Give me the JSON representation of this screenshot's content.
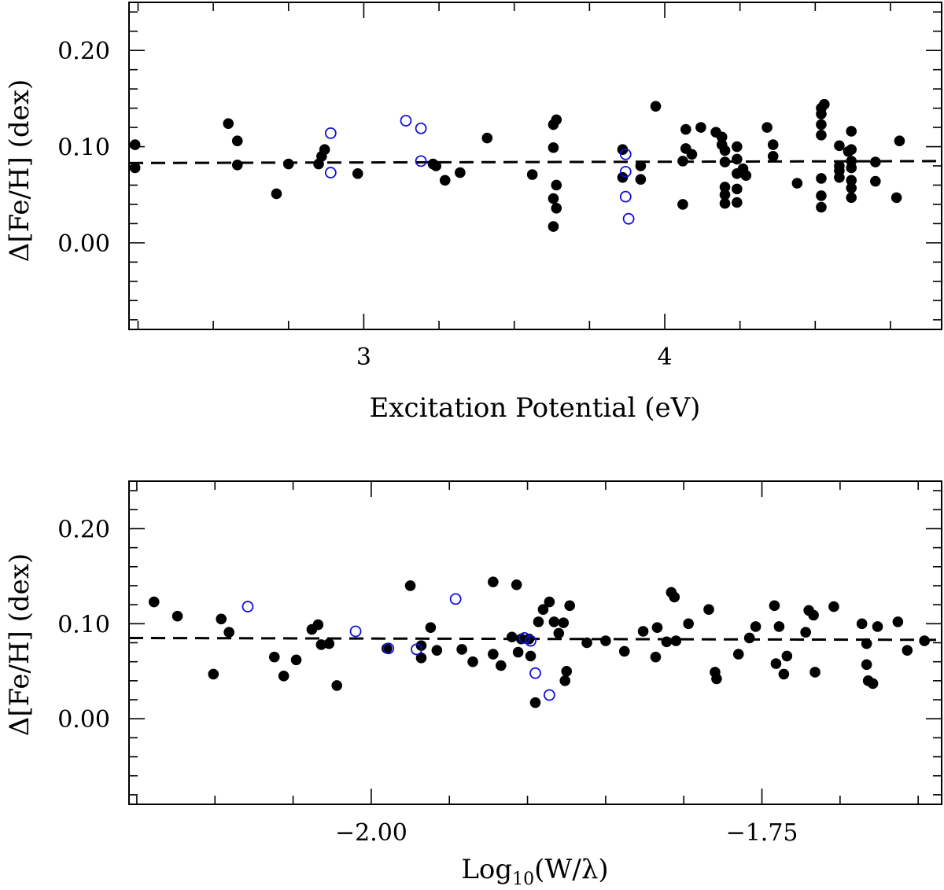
{
  "chart_data": [
    {
      "type": "scatter",
      "xlabel": "Excitation Potential (eV)",
      "ylabel": "Δ[Fe/H] (dex)",
      "xlim": [
        2.22,
        4.92
      ],
      "ylim": [
        -0.09,
        0.25
      ],
      "x_major_ticks": [
        3,
        4
      ],
      "x_tick_labels": [
        "3",
        "4"
      ],
      "x_minor_step": 0.25,
      "y_major_ticks": [
        0.0,
        0.1,
        0.2
      ],
      "y_tick_labels": [
        "0.00",
        "0.10",
        "0.20"
      ],
      "y_minor_step": 0.02,
      "grid": false,
      "reference_line": {
        "style": "dashed",
        "y_start": 0.083,
        "y_end": 0.085
      },
      "series": [
        {
          "marker": "filled-circle",
          "color": "#000000",
          "points": [
            [
              2.24,
              0.102
            ],
            [
              2.24,
              0.078
            ],
            [
              2.55,
              0.124
            ],
            [
              2.58,
              0.106
            ],
            [
              2.58,
              0.081
            ],
            [
              2.71,
              0.051
            ],
            [
              2.75,
              0.082
            ],
            [
              2.85,
              0.082
            ],
            [
              2.86,
              0.09
            ],
            [
              2.87,
              0.097
            ],
            [
              2.98,
              0.072
            ],
            [
              3.23,
              0.082
            ],
            [
              3.24,
              0.08
            ],
            [
              3.27,
              0.065
            ],
            [
              3.32,
              0.073
            ],
            [
              3.41,
              0.109
            ],
            [
              3.56,
              0.071
            ],
            [
              3.63,
              0.123
            ],
            [
              3.64,
              0.128
            ],
            [
              3.63,
              0.099
            ],
            [
              3.64,
              0.06
            ],
            [
              3.63,
              0.046
            ],
            [
              3.64,
              0.036
            ],
            [
              3.63,
              0.017
            ],
            [
              3.86,
              0.097
            ],
            [
              3.86,
              0.068
            ],
            [
              3.92,
              0.08
            ],
            [
              3.92,
              0.066
            ],
            [
              3.97,
              0.142
            ],
            [
              4.06,
              0.085
            ],
            [
              4.07,
              0.118
            ],
            [
              4.07,
              0.098
            ],
            [
              4.06,
              0.04
            ],
            [
              4.09,
              0.092
            ],
            [
              4.12,
              0.12
            ],
            [
              4.17,
              0.115
            ],
            [
              4.19,
              0.11
            ],
            [
              4.19,
              0.102
            ],
            [
              4.2,
              0.096
            ],
            [
              4.2,
              0.084
            ],
            [
              4.2,
              0.058
            ],
            [
              4.2,
              0.05
            ],
            [
              4.2,
              0.041
            ],
            [
              4.24,
              0.1
            ],
            [
              4.24,
              0.087
            ],
            [
              4.24,
              0.072
            ],
            [
              4.24,
              0.056
            ],
            [
              4.24,
              0.042
            ],
            [
              4.26,
              0.077
            ],
            [
              4.27,
              0.07
            ],
            [
              4.34,
              0.12
            ],
            [
              4.36,
              0.102
            ],
            [
              4.36,
              0.09
            ],
            [
              4.44,
              0.062
            ],
            [
              4.52,
              0.14
            ],
            [
              4.53,
              0.144
            ],
            [
              4.52,
              0.134
            ],
            [
              4.52,
              0.123
            ],
            [
              4.52,
              0.112
            ],
            [
              4.52,
              0.067
            ],
            [
              4.52,
              0.049
            ],
            [
              4.52,
              0.037
            ],
            [
              4.58,
              0.101
            ],
            [
              4.58,
              0.08
            ],
            [
              4.58,
              0.075
            ],
            [
              4.58,
              0.068
            ],
            [
              4.61,
              0.095
            ],
            [
              4.62,
              0.116
            ],
            [
              4.62,
              0.097
            ],
            [
              4.62,
              0.085
            ],
            [
              4.62,
              0.078
            ],
            [
              4.62,
              0.065
            ],
            [
              4.62,
              0.057
            ],
            [
              4.62,
              0.047
            ],
            [
              4.7,
              0.084
            ],
            [
              4.7,
              0.064
            ],
            [
              4.77,
              0.047
            ],
            [
              4.78,
              0.106
            ]
          ]
        },
        {
          "marker": "open-circle",
          "color": "#1010d8",
          "points": [
            [
              2.89,
              0.114
            ],
            [
              2.89,
              0.073
            ],
            [
              3.14,
              0.127
            ],
            [
              3.19,
              0.119
            ],
            [
              3.19,
              0.085
            ],
            [
              3.87,
              0.092
            ],
            [
              3.87,
              0.074
            ],
            [
              3.87,
              0.048
            ],
            [
              3.88,
              0.025
            ]
          ]
        }
      ]
    },
    {
      "type": "scatter",
      "xlabel": "Log10(W/λ)",
      "ylabel": "Δ[Fe/H] (dex)",
      "xlim": [
        -2.155,
        -1.635
      ],
      "ylim": [
        -0.09,
        0.25
      ],
      "x_major_ticks": [
        -2.0,
        -1.75
      ],
      "x_tick_labels": [
        "−2.00",
        "−1.75"
      ],
      "x_minor_step": 0.05,
      "y_major_ticks": [
        0.0,
        0.1,
        0.2
      ],
      "y_tick_labels": [
        "0.00",
        "0.10",
        "0.20"
      ],
      "y_minor_step": 0.02,
      "grid": false,
      "reference_line": {
        "style": "dashed",
        "y_start": 0.085,
        "y_end": 0.083
      },
      "series": [
        {
          "marker": "filled-circle",
          "color": "#000000",
          "points": [
            [
              -2.139,
              0.123
            ],
            [
              -2.124,
              0.108
            ],
            [
              -2.101,
              0.047
            ],
            [
              -2.096,
              0.105
            ],
            [
              -2.091,
              0.091
            ],
            [
              -2.062,
              0.065
            ],
            [
              -2.056,
              0.045
            ],
            [
              -2.048,
              0.062
            ],
            [
              -2.038,
              0.094
            ],
            [
              -2.034,
              0.099
            ],
            [
              -2.032,
              0.078
            ],
            [
              -2.027,
              0.079
            ],
            [
              -2.022,
              0.035
            ],
            [
              -1.99,
              0.074
            ],
            [
              -1.975,
              0.14
            ],
            [
              -1.968,
              0.064
            ],
            [
              -1.968,
              0.077
            ],
            [
              -1.962,
              0.096
            ],
            [
              -1.958,
              0.072
            ],
            [
              -1.942,
              0.073
            ],
            [
              -1.935,
              0.06
            ],
            [
              -1.922,
              0.144
            ],
            [
              -1.922,
              0.068
            ],
            [
              -1.917,
              0.056
            ],
            [
              -1.91,
              0.086
            ],
            [
              -1.907,
              0.141
            ],
            [
              -1.906,
              0.07
            ],
            [
              -1.904,
              0.084
            ],
            [
              -1.898,
              0.066
            ],
            [
              -1.899,
              0.084
            ],
            [
              -1.895,
              0.017
            ],
            [
              -1.893,
              0.102
            ],
            [
              -1.89,
              0.115
            ],
            [
              -1.886,
              0.123
            ],
            [
              -1.883,
              0.102
            ],
            [
              -1.88,
              0.09
            ],
            [
              -1.877,
              0.101
            ],
            [
              -1.876,
              0.04
            ],
            [
              -1.873,
              0.119
            ],
            [
              -1.875,
              0.05
            ],
            [
              -1.862,
              0.08
            ],
            [
              -1.85,
              0.082
            ],
            [
              -1.838,
              0.071
            ],
            [
              -1.826,
              0.092
            ],
            [
              -1.818,
              0.065
            ],
            [
              -1.817,
              0.096
            ],
            [
              -1.811,
              0.081
            ],
            [
              -1.808,
              0.133
            ],
            [
              -1.806,
              0.128
            ],
            [
              -1.805,
              0.082
            ],
            [
              -1.797,
              0.1
            ],
            [
              -1.784,
              0.115
            ],
            [
              -1.78,
              0.049
            ],
            [
              -1.779,
              0.042
            ],
            [
              -1.765,
              0.068
            ],
            [
              -1.758,
              0.085
            ],
            [
              -1.754,
              0.097
            ],
            [
              -1.742,
              0.119
            ],
            [
              -1.741,
              0.058
            ],
            [
              -1.739,
              0.097
            ],
            [
              -1.736,
              0.047
            ],
            [
              -1.734,
              0.066
            ],
            [
              -1.722,
              0.091
            ],
            [
              -1.72,
              0.114
            ],
            [
              -1.717,
              0.109
            ],
            [
              -1.716,
              0.049
            ],
            [
              -1.704,
              0.118
            ],
            [
              -1.686,
              0.1
            ],
            [
              -1.683,
              0.079
            ],
            [
              -1.683,
              0.057
            ],
            [
              -1.682,
              0.04
            ],
            [
              -1.679,
              0.037
            ],
            [
              -1.676,
              0.097
            ],
            [
              -1.663,
              0.102
            ],
            [
              -1.657,
              0.072
            ],
            [
              -1.646,
              0.082
            ]
          ]
        },
        {
          "marker": "open-circle",
          "color": "#1010d8",
          "points": [
            [
              -2.079,
              0.118
            ],
            [
              -2.01,
              0.092
            ],
            [
              -1.989,
              0.074
            ],
            [
              -1.971,
              0.073
            ],
            [
              -1.946,
              0.126
            ],
            [
              -1.902,
              0.085
            ],
            [
              -1.898,
              0.082
            ],
            [
              -1.895,
              0.048
            ],
            [
              -1.886,
              0.025
            ]
          ]
        }
      ]
    }
  ]
}
